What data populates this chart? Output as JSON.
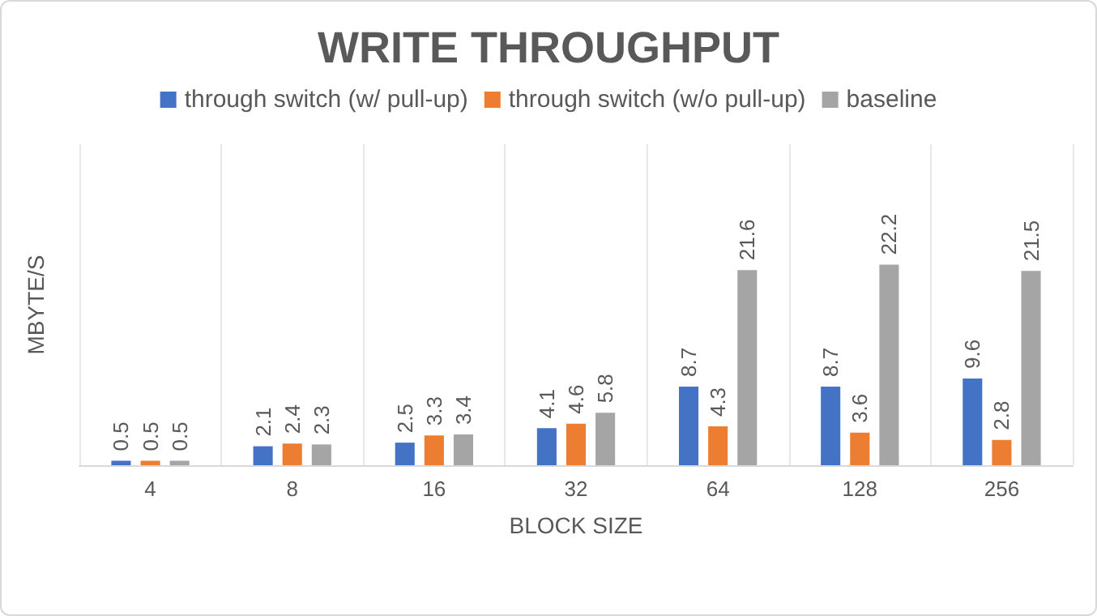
{
  "chart_data": {
    "type": "bar",
    "title": "WRITE THROUGHPUT",
    "xlabel": "BLOCK SIZE",
    "ylabel": "MBYTE/S",
    "categories": [
      "4",
      "8",
      "16",
      "32",
      "64",
      "128",
      "256"
    ],
    "series": [
      {
        "name": "through switch (w/ pull-up)",
        "color": "#4472c4",
        "values": [
          0.5,
          2.1,
          2.5,
          4.1,
          8.7,
          8.7,
          9.6
        ]
      },
      {
        "name": "through switch (w/o pull-up)",
        "color": "#ed7d31",
        "values": [
          0.5,
          2.4,
          3.3,
          4.6,
          4.3,
          3.6,
          2.8
        ]
      },
      {
        "name": "baseline",
        "color": "#a5a5a5",
        "values": [
          0.5,
          2.3,
          3.4,
          5.8,
          21.6,
          22.2,
          21.5
        ]
      }
    ],
    "data_labels": true,
    "grid": "x",
    "legend": "top"
  }
}
